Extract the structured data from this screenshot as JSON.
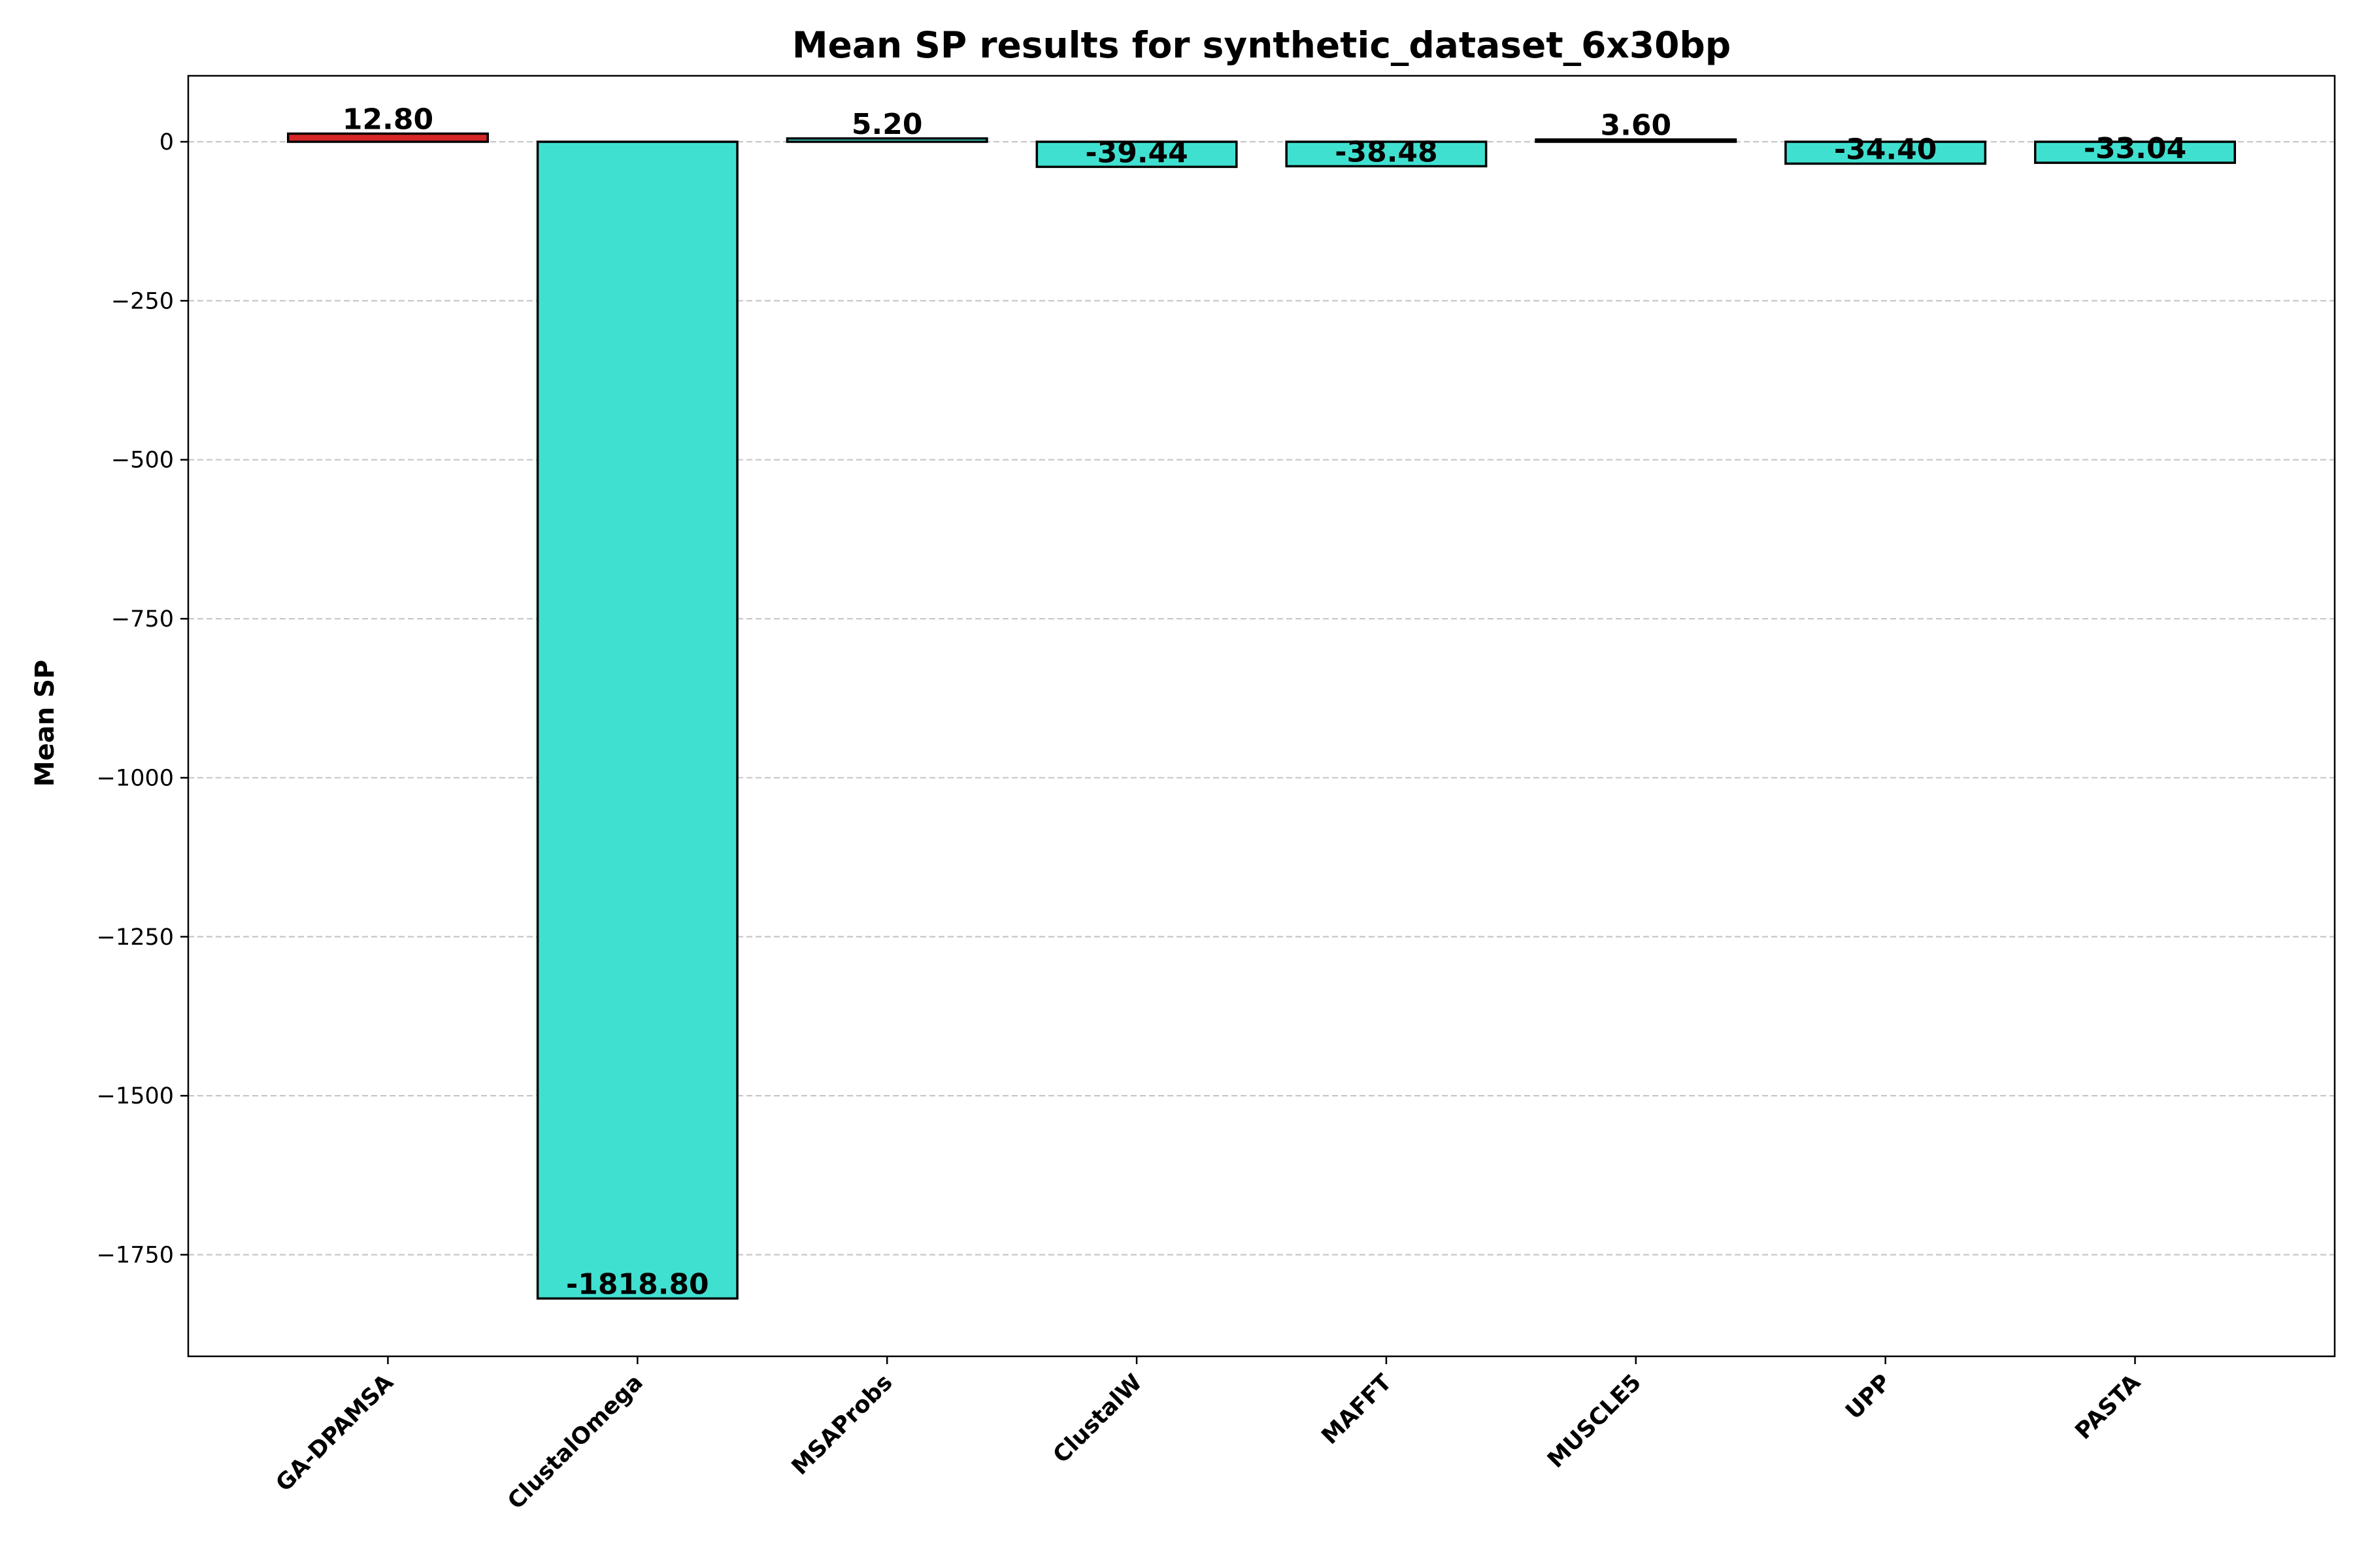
{
  "chart_data": {
    "type": "bar",
    "title": "Mean SP results for synthetic_dataset_6x30bp",
    "xlabel": "",
    "ylabel": "Mean SP",
    "categories": [
      "GA-DPAMSA",
      "ClustalOmega",
      "MSAProbs",
      "ClustalW",
      "MAFFT",
      "MUSCLE5",
      "UPP",
      "PASTA"
    ],
    "values": [
      12.8,
      -1818.8,
      5.2,
      -39.44,
      -38.48,
      3.6,
      -34.4,
      -33.04
    ],
    "value_labels": [
      "12.80",
      "-1818.80",
      "5.20",
      "-39.44",
      "-38.48",
      "3.60",
      "-34.40",
      "-33.04"
    ],
    "bar_colors": [
      "#d62728",
      "#40e0d0",
      "#40e0d0",
      "#40e0d0",
      "#40e0d0",
      "#40e0d0",
      "#40e0d0",
      "#40e0d0"
    ],
    "edge_color": "#000000",
    "yticks": [
      0,
      -250,
      -500,
      -750,
      -1000,
      -1250,
      -1500,
      -1750
    ],
    "ytick_labels": [
      "0",
      "−250",
      "−500",
      "−750",
      "−1000",
      "−1250",
      "−1500",
      "−1750"
    ],
    "ylim": [
      -1909.74,
      103.75
    ],
    "grid": "y dashed",
    "xtick_rotation": -45
  }
}
